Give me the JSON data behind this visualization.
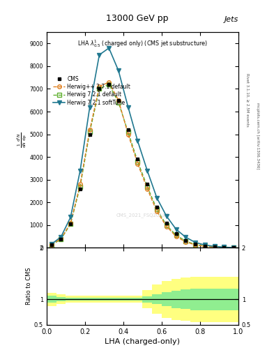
{
  "title": "13000 GeV pp",
  "title_right": "Jets",
  "xlabel": "LHA (charged-only)",
  "ylabel_ratio": "Ratio to CMS",
  "right_label_top": "Rivet 3.1.10, ≥ 2.5M events",
  "right_label_bottom": "mcplots.cern.ch [arXiv:1306.3436]",
  "watermark": "CMS_2021_FSQ20187",
  "lha_x": [
    0.025,
    0.075,
    0.125,
    0.175,
    0.225,
    0.275,
    0.325,
    0.375,
    0.425,
    0.475,
    0.525,
    0.575,
    0.625,
    0.675,
    0.725,
    0.775,
    0.825,
    0.875,
    0.925,
    0.975
  ],
  "cms_y": [
    130,
    380,
    1050,
    2600,
    5000,
    7000,
    7200,
    6500,
    5200,
    3900,
    2800,
    1800,
    1100,
    620,
    330,
    160,
    80,
    40,
    18,
    7
  ],
  "cms_color": "#000000",
  "cms_marker": "s",
  "cms_label": "CMS",
  "herwig_pp_y": [
    140,
    400,
    1100,
    2800,
    5200,
    7100,
    7300,
    6500,
    5000,
    3700,
    2600,
    1600,
    950,
    500,
    260,
    130,
    65,
    35,
    16,
    6
  ],
  "herwig_pp_color": "#e08020",
  "herwig_pp_label": "Herwig++ 2.7.1 default",
  "herwig721_y": [
    120,
    380,
    1050,
    2700,
    5100,
    7000,
    7200,
    6400,
    5100,
    3800,
    2700,
    1700,
    1000,
    560,
    300,
    150,
    75,
    40,
    18,
    7
  ],
  "herwig721_color": "#60b030",
  "herwig721_label": "Herwig 7.2.1 default",
  "herwig721soft_y": [
    160,
    480,
    1350,
    3400,
    6200,
    8500,
    8800,
    7800,
    6200,
    4700,
    3400,
    2200,
    1400,
    820,
    470,
    240,
    125,
    65,
    30,
    10
  ],
  "herwig721soft_color": "#207890",
  "herwig721soft_label": "Herwig 7.2.1 softTune",
  "ylim_main": [
    0,
    9500
  ],
  "yticks_main": [
    0,
    1000,
    2000,
    3000,
    4000,
    5000,
    6000,
    7000,
    8000,
    9000
  ],
  "xlim": [
    0.0,
    1.0
  ],
  "ratio_ylim": [
    0.5,
    2.0
  ],
  "green_band_lo": [
    0.93,
    0.96,
    0.97,
    0.97,
    0.97,
    0.97,
    0.97,
    0.97,
    0.97,
    0.97,
    0.94,
    0.9,
    0.86,
    0.83,
    0.81,
    0.79,
    0.79,
    0.79,
    0.79,
    0.79
  ],
  "green_band_hi": [
    1.07,
    1.04,
    1.03,
    1.03,
    1.03,
    1.03,
    1.03,
    1.03,
    1.03,
    1.03,
    1.06,
    1.1,
    1.14,
    1.17,
    1.19,
    1.21,
    1.21,
    1.21,
    1.21,
    1.21
  ],
  "yellow_band_lo": [
    0.87,
    0.9,
    0.93,
    0.93,
    0.93,
    0.93,
    0.93,
    0.93,
    0.93,
    0.93,
    0.82,
    0.72,
    0.64,
    0.6,
    0.58,
    0.56,
    0.56,
    0.56,
    0.56,
    0.56
  ],
  "yellow_band_hi": [
    1.13,
    1.1,
    1.07,
    1.07,
    1.07,
    1.07,
    1.07,
    1.07,
    1.07,
    1.07,
    1.18,
    1.28,
    1.36,
    1.4,
    1.42,
    1.44,
    1.44,
    1.44,
    1.44,
    1.44
  ],
  "green_color": "#90ee90",
  "yellow_color": "#ffff80",
  "bg_color": "#ffffff"
}
